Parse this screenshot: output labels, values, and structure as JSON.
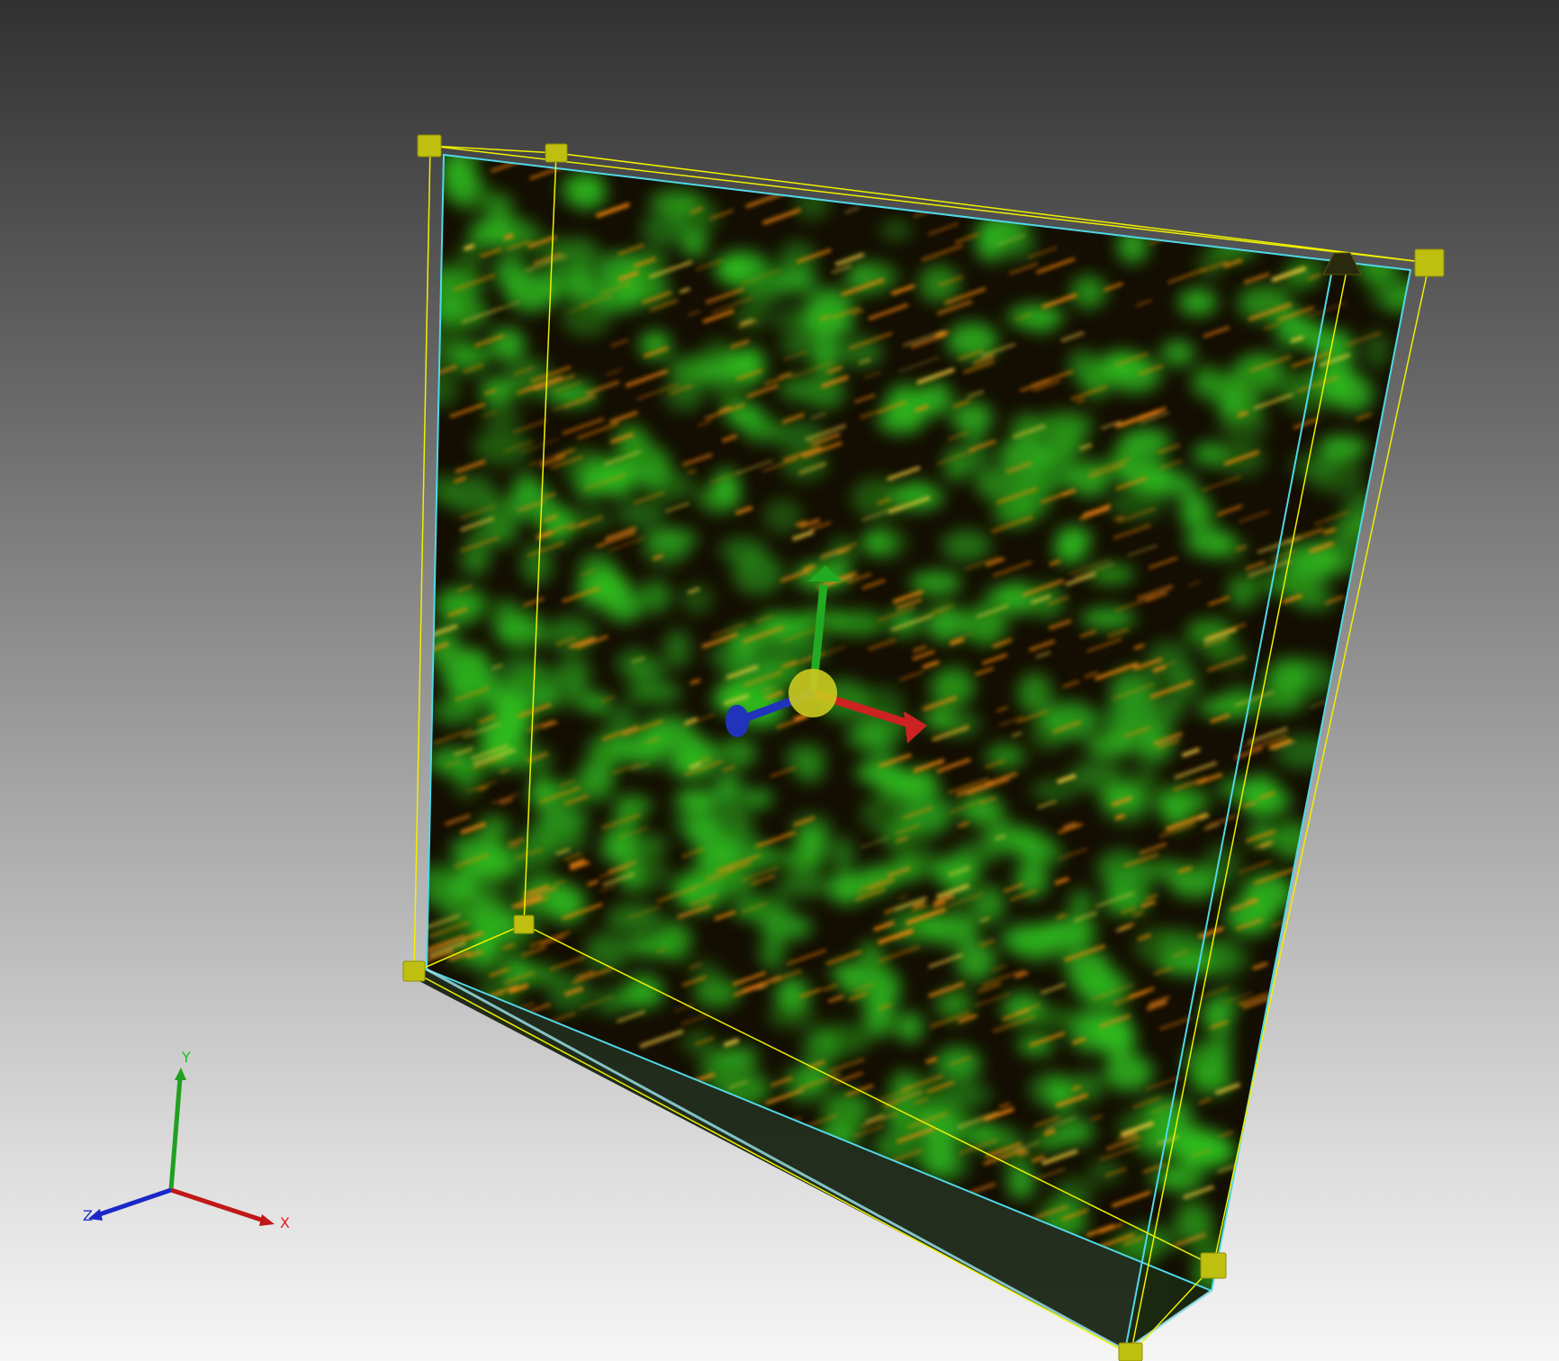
{
  "viewer": {
    "background_top": "#313131",
    "background_bottom": "#f6f6f6"
  },
  "volume": {
    "channel_colors": [
      "#2fbf1f",
      "#ff8a10"
    ],
    "bounding_box_color": "#f0f000",
    "clip_outline_color": "#4fd8e8"
  },
  "gizmo": {
    "x_color": "#cc2222",
    "y_color": "#22aa22",
    "z_color": "#2233bb",
    "center_color": "#c8c820"
  },
  "orientation_axes": {
    "x_label": "X",
    "y_label": "Y",
    "z_label": "Z",
    "x_color": "#e02020",
    "y_color": "#20c020",
    "z_color": "#2030d0"
  }
}
